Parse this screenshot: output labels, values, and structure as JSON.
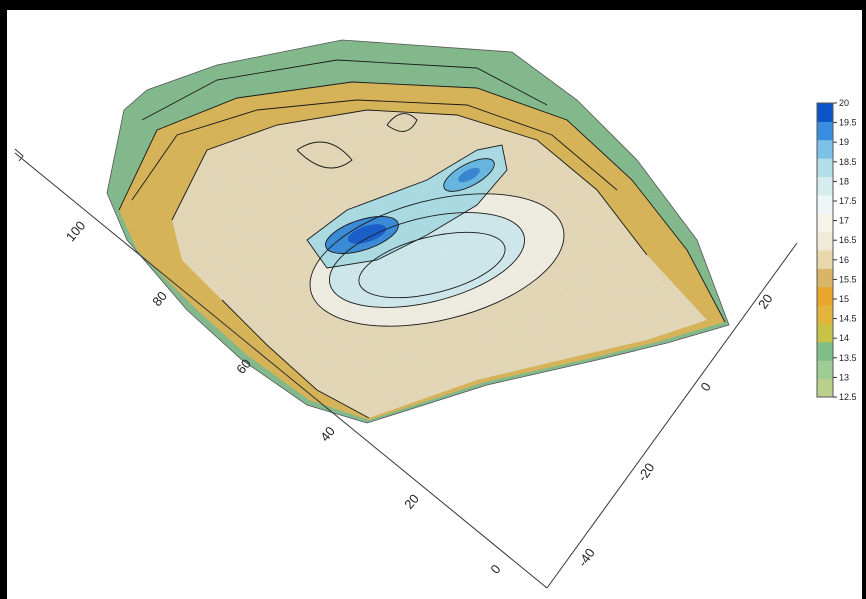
{
  "chart_data": {
    "type": "surface3d",
    "title": "",
    "x_axis": {
      "label": "",
      "ticks": [
        "0",
        "20",
        "40",
        "60",
        "80",
        "100"
      ]
    },
    "y_axis": {
      "label": "",
      "ticks": [
        "-40",
        "-20",
        "0",
        "20"
      ]
    },
    "z_axis": {
      "label": "",
      "range": [
        12.5,
        20
      ]
    },
    "colorbar": {
      "ticks": [
        "12.5",
        "13",
        "13.5",
        "14",
        "14.5",
        "15",
        "15.5",
        "16",
        "16.5",
        "17",
        "17.5",
        "18",
        "18.5",
        "19",
        "19.5",
        "20"
      ],
      "colors": [
        "#b9cf8a",
        "#9fcc95",
        "#7fbe86",
        "#c8c246",
        "#e1b53c",
        "#e8a62a",
        "#d9b567",
        "#e7d7ab",
        "#f1ead8",
        "#f7f4ea",
        "#eef7f7",
        "#d6edf0",
        "#b2dfe8",
        "#7cc2e6",
        "#3a8ee0",
        "#0b55c9"
      ]
    },
    "grid": false,
    "legend": "right"
  }
}
